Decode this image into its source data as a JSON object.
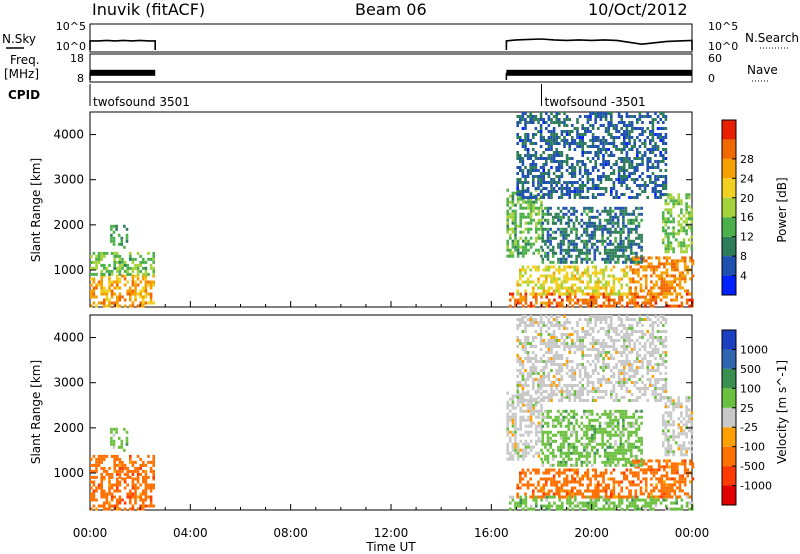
{
  "header": {
    "station": "Inuvik (fitACF)",
    "beam": "Beam 06",
    "date": "10/Oct/2012"
  },
  "side_labels": {
    "nsky": "N.Sky",
    "freq": "Freq.",
    "freq_unit": "[MHz]",
    "cpid": "CPID",
    "nsearch": "N.Search",
    "nave": "Nave"
  },
  "chart_data": [
    {
      "type": "line",
      "panel": "noise",
      "left_axis_ticks": [
        "10^5",
        "10^0"
      ],
      "right_axis_ticks": [
        "10^5",
        "10^0"
      ],
      "series": [
        {
          "name": "N.Sky",
          "segments": [
            {
              "x": [
                "00:00",
                "00:20",
                "00:40",
                "01:00",
                "01:20",
                "01:40",
                "02:00",
                "02:20",
                "02:36"
              ],
              "y_log10": [
                1.9,
                1.9,
                2.0,
                1.9,
                2.0,
                1.9,
                2.0,
                1.9,
                1.9
              ]
            },
            {
              "x": [
                "16:36",
                "17:00",
                "17:30",
                "18:00",
                "18:30",
                "19:00",
                "19:30",
                "20:00",
                "20:30",
                "21:00",
                "21:30",
                "22:00",
                "22:30",
                "23:00",
                "23:30",
                "24:00"
              ],
              "y_log10": [
                1.9,
                2.1,
                2.2,
                2.3,
                2.1,
                2.0,
                2.1,
                2.0,
                2.1,
                2.0,
                1.6,
                1.2,
                1.5,
                1.8,
                1.9,
                2.0
              ]
            }
          ]
        },
        {
          "name": "N.Search"
        }
      ]
    },
    {
      "type": "line",
      "panel": "frequency",
      "left_axis_ticks": [
        "18",
        "8"
      ],
      "right_axis_ticks": [
        "60",
        "0"
      ],
      "series": [
        {
          "name": "Freq.",
          "segments": [
            {
              "x": [
                "00:00",
                "02:36"
              ],
              "y": [
                11,
                11
              ]
            },
            {
              "x": [
                "16:36",
                "24:00"
              ],
              "y": [
                11,
                11
              ]
            }
          ]
        },
        {
          "name": "Nave"
        }
      ]
    },
    {
      "type": "table",
      "panel": "cpid",
      "entries": [
        {
          "start": "00:00",
          "label": "twofsound 3501"
        },
        {
          "start": "18:00",
          "label": "twofsound -3501"
        }
      ]
    },
    {
      "type": "heatmap",
      "panel": "power",
      "xlabel": "",
      "ylabel": "Slant Range [km]",
      "x_ticks": [],
      "y_ticks": [
        "1000",
        "2000",
        "3000",
        "4000"
      ],
      "ylim": [
        180,
        4500
      ],
      "colorbar": {
        "label": "Power [dB]",
        "ticks": [
          "4",
          "8",
          "12",
          "16",
          "20",
          "24",
          "28"
        ],
        "range": [
          0,
          30
        ],
        "colors": [
          "#0022ff",
          "#2050b0",
          "#2e7d5a",
          "#4cb04a",
          "#a4d23a",
          "#f0d020",
          "#f5a000",
          "#f06a00",
          "#e82000"
        ]
      },
      "regions": [
        {
          "t0": 0.0,
          "t1": 2.55,
          "r0": 180,
          "r1": 900,
          "value": 22
        },
        {
          "t0": 0.0,
          "t1": 2.55,
          "r0": 900,
          "r1": 1400,
          "value": 12
        },
        {
          "t0": 0.8,
          "t1": 1.5,
          "r0": 1500,
          "r1": 2000,
          "value": 9
        },
        {
          "t0": 16.6,
          "t1": 24.0,
          "r0": 180,
          "r1": 500,
          "value": 26
        },
        {
          "t0": 17.0,
          "t1": 21.5,
          "r0": 500,
          "r1": 1100,
          "value": 18
        },
        {
          "t0": 21.5,
          "t1": 24.0,
          "r0": 500,
          "r1": 1300,
          "value": 24
        },
        {
          "t0": 16.6,
          "t1": 18.0,
          "r0": 1300,
          "r1": 2800,
          "value": 12
        },
        {
          "t0": 22.8,
          "t1": 24.0,
          "r0": 1400,
          "r1": 2700,
          "value": 13
        },
        {
          "t0": 18.0,
          "t1": 22.0,
          "r0": 1200,
          "r1": 2400,
          "value": 7
        },
        {
          "t0": 17.0,
          "t1": 23.0,
          "r0": 2600,
          "r1": 4500,
          "value": 5
        }
      ]
    },
    {
      "type": "heatmap",
      "panel": "velocity",
      "xlabel": "Time UT",
      "ylabel": "Slant Range [km]",
      "x_ticks": [
        "00:00",
        "04:00",
        "08:00",
        "12:00",
        "16:00",
        "20:00",
        "00:00"
      ],
      "y_ticks": [
        "1000",
        "2000",
        "3000",
        "4000"
      ],
      "ylim": [
        180,
        4500
      ],
      "colorbar": {
        "label": "Velocity [m s^-1]",
        "ticks": [
          "1000",
          "500",
          "100",
          "25",
          "-25",
          "-100",
          "-500",
          "-1000"
        ],
        "colors": [
          "#1a3fc0",
          "#2f66b2",
          "#3a9050",
          "#6cc040",
          "#c8c8c8",
          "#ffa000",
          "#ff7000",
          "#ff3a00",
          "#e00000"
        ]
      },
      "regions": [
        {
          "t0": 0.0,
          "t1": 2.55,
          "r0": 180,
          "r1": 900,
          "value": -300
        },
        {
          "t0": 0.0,
          "t1": 2.55,
          "r0": 900,
          "r1": 1400,
          "value": -150
        },
        {
          "t0": 0.8,
          "t1": 1.5,
          "r0": 1500,
          "r1": 2000,
          "value": 60
        },
        {
          "t0": 16.6,
          "t1": 24.0,
          "r0": 180,
          "r1": 500,
          "value": 60
        },
        {
          "t0": 17.0,
          "t1": 21.5,
          "r0": 500,
          "r1": 1100,
          "value": -300
        },
        {
          "t0": 21.5,
          "t1": 24.0,
          "r0": 500,
          "r1": 1300,
          "value": -400
        },
        {
          "t0": 16.6,
          "t1": 18.0,
          "r0": 1300,
          "r1": 2800,
          "value": 10
        },
        {
          "t0": 22.8,
          "t1": 24.0,
          "r0": 1400,
          "r1": 2700,
          "value": 5
        },
        {
          "t0": 18.0,
          "t1": 22.0,
          "r0": 1200,
          "r1": 2400,
          "value": 40
        },
        {
          "t0": 17.0,
          "t1": 23.0,
          "r0": 2600,
          "r1": 4500,
          "value": 20
        }
      ]
    }
  ]
}
